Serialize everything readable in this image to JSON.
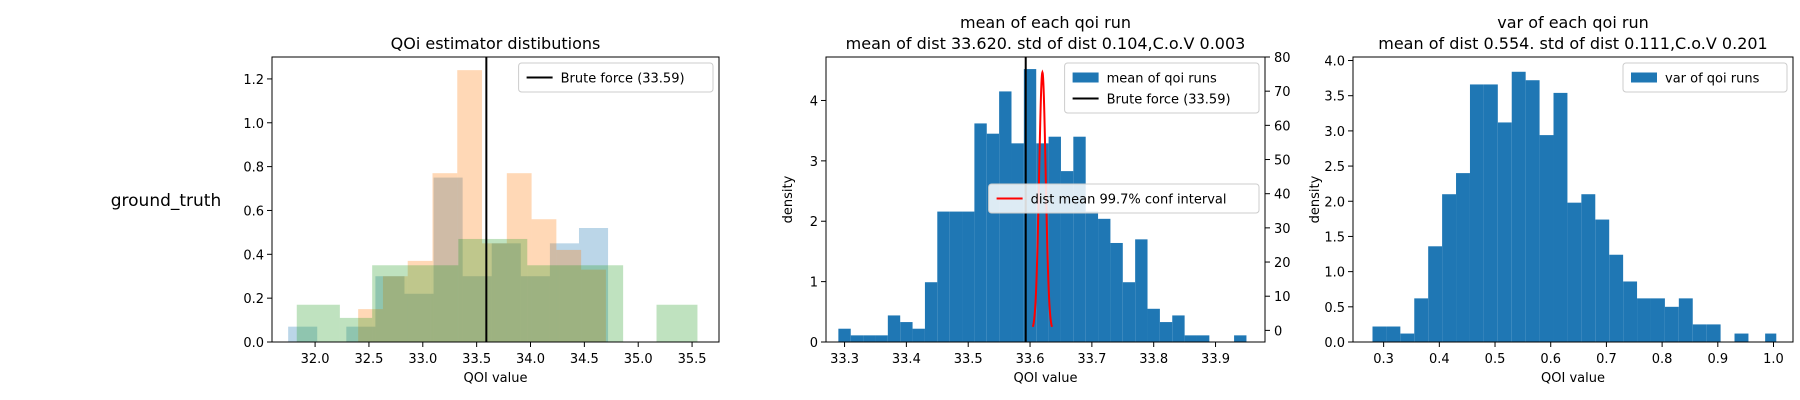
{
  "row_label": "ground_truth",
  "chart_data": [
    {
      "type": "histogram",
      "title": "QOi estimator distibutions",
      "xlabel": "QOI value",
      "ylabel": "",
      "xlim": [
        31.6,
        35.75
      ],
      "ylim": [
        0,
        1.3
      ],
      "xticks": [
        32.0,
        32.5,
        33.0,
        33.5,
        34.0,
        34.5,
        35.0,
        35.5
      ],
      "yticks": [
        0.0,
        0.2,
        0.4,
        0.6,
        0.8,
        1.0,
        1.2
      ],
      "xtick_decimals": 1,
      "ytick_decimals": 1,
      "grid": false,
      "legend": {
        "position": "top-right",
        "entries": [
          {
            "label": "Brute force (33.59)",
            "kind": "line",
            "color": "#000000"
          }
        ]
      },
      "vlines": [
        {
          "x": 33.59,
          "color": "#000000"
        }
      ],
      "series": [
        {
          "color": "#1f77b4",
          "alpha": 0.3,
          "bins": [
            {
              "x0": 31.75,
              "x1": 32.02,
              "h": 0.07
            },
            {
              "x0": 32.02,
              "x1": 32.29,
              "h": 0.0
            },
            {
              "x0": 32.29,
              "x1": 32.56,
              "h": 0.07
            },
            {
              "x0": 32.56,
              "x1": 32.83,
              "h": 0.3
            },
            {
              "x0": 32.83,
              "x1": 33.1,
              "h": 0.22
            },
            {
              "x0": 33.1,
              "x1": 33.37,
              "h": 0.75
            },
            {
              "x0": 33.37,
              "x1": 33.64,
              "h": 0.3
            },
            {
              "x0": 33.64,
              "x1": 33.91,
              "h": 0.45
            },
            {
              "x0": 33.91,
              "x1": 34.18,
              "h": 0.3
            },
            {
              "x0": 34.18,
              "x1": 34.45,
              "h": 0.45
            },
            {
              "x0": 34.45,
              "x1": 34.72,
              "h": 0.52
            }
          ]
        },
        {
          "color": "#ff7f0e",
          "alpha": 0.3,
          "bins": [
            {
              "x0": 32.4,
              "x1": 32.63,
              "h": 0.15
            },
            {
              "x0": 32.63,
              "x1": 32.86,
              "h": 0.3
            },
            {
              "x0": 32.86,
              "x1": 33.09,
              "h": 0.37
            },
            {
              "x0": 33.09,
              "x1": 33.32,
              "h": 0.77
            },
            {
              "x0": 33.32,
              "x1": 33.55,
              "h": 1.24
            },
            {
              "x0": 33.55,
              "x1": 33.78,
              "h": 0.45
            },
            {
              "x0": 33.78,
              "x1": 34.01,
              "h": 0.77
            },
            {
              "x0": 34.01,
              "x1": 34.24,
              "h": 0.56
            },
            {
              "x0": 34.24,
              "x1": 34.47,
              "h": 0.42
            },
            {
              "x0": 34.47,
              "x1": 34.7,
              "h": 0.33
            }
          ]
        },
        {
          "color": "#2ca02c",
          "alpha": 0.3,
          "bins": [
            {
              "x0": 31.83,
              "x1": 32.23,
              "h": 0.17
            },
            {
              "x0": 32.23,
              "x1": 32.53,
              "h": 0.11
            },
            {
              "x0": 32.53,
              "x1": 33.07,
              "h": 0.35
            },
            {
              "x0": 33.07,
              "x1": 33.33,
              "h": 0.35
            },
            {
              "x0": 33.33,
              "x1": 33.67,
              "h": 0.47
            },
            {
              "x0": 33.67,
              "x1": 33.97,
              "h": 0.47
            },
            {
              "x0": 33.97,
              "x1": 34.27,
              "h": 0.35
            },
            {
              "x0": 34.27,
              "x1": 34.86,
              "h": 0.35
            },
            {
              "x0": 34.86,
              "x1": 35.17,
              "h": 0.0
            },
            {
              "x0": 35.17,
              "x1": 35.55,
              "h": 0.17
            }
          ]
        }
      ]
    },
    {
      "type": "histogram",
      "title": "mean of each qoi run",
      "subtitle": "mean of dist 33.620. std of dist 0.104,C.o.V 0.003",
      "xlabel": "QOI value",
      "ylabel": "density",
      "xlim": [
        33.27,
        33.98
      ],
      "ylim": [
        0,
        4.72
      ],
      "xticks": [
        33.3,
        33.4,
        33.5,
        33.6,
        33.7,
        33.8,
        33.9
      ],
      "yticks": [
        0,
        1,
        2,
        3,
        4
      ],
      "xtick_decimals": 1,
      "ytick_decimals": 0,
      "y2lim": [
        -3.4,
        80
      ],
      "y2ticks": [
        0,
        10,
        20,
        30,
        40,
        50,
        60,
        70,
        80
      ],
      "grid": false,
      "legend": {
        "position": "top-right",
        "entries": [
          {
            "label": "mean of qoi runs",
            "kind": "patch",
            "color": "#1f77b4"
          },
          {
            "label": "Brute force (33.59)",
            "kind": "line",
            "color": "#000000"
          }
        ]
      },
      "legend2": {
        "position": "center-right",
        "entries": [
          {
            "label": "dist mean 99.7% conf interval",
            "kind": "line",
            "color": "#ff0000"
          }
        ]
      },
      "vlines": [
        {
          "x": 33.593,
          "color": "#000000"
        }
      ],
      "curve": {
        "color": "#ff0000",
        "mu": 33.62,
        "sigma": 0.0053,
        "peak": 75.5,
        "x_from": 33.6045,
        "x_to": 33.6355
      },
      "series": [
        {
          "color": "#1f77b4",
          "alpha": 1.0,
          "bins": [
            {
              "x0": 33.29,
              "x1": 33.31,
              "h": 0.22
            },
            {
              "x0": 33.31,
              "x1": 33.33,
              "h": 0.11
            },
            {
              "x0": 33.33,
              "x1": 33.35,
              "h": 0.11
            },
            {
              "x0": 33.35,
              "x1": 33.37,
              "h": 0.11
            },
            {
              "x0": 33.37,
              "x1": 33.39,
              "h": 0.44
            },
            {
              "x0": 33.39,
              "x1": 33.41,
              "h": 0.33
            },
            {
              "x0": 33.41,
              "x1": 33.43,
              "h": 0.22
            },
            {
              "x0": 33.43,
              "x1": 33.45,
              "h": 0.99
            },
            {
              "x0": 33.45,
              "x1": 33.47,
              "h": 2.16
            },
            {
              "x0": 33.47,
              "x1": 33.49,
              "h": 2.16
            },
            {
              "x0": 33.49,
              "x1": 33.51,
              "h": 2.16
            },
            {
              "x0": 33.51,
              "x1": 33.53,
              "h": 3.62
            },
            {
              "x0": 33.53,
              "x1": 33.55,
              "h": 3.45
            },
            {
              "x0": 33.55,
              "x1": 33.57,
              "h": 4.15
            },
            {
              "x0": 33.57,
              "x1": 33.59,
              "h": 3.29
            },
            {
              "x0": 33.59,
              "x1": 33.61,
              "h": 4.52
            },
            {
              "x0": 33.61,
              "x1": 33.63,
              "h": 3.29
            },
            {
              "x0": 33.63,
              "x1": 33.65,
              "h": 3.4
            },
            {
              "x0": 33.65,
              "x1": 33.67,
              "h": 2.83
            },
            {
              "x0": 33.67,
              "x1": 33.69,
              "h": 3.4
            },
            {
              "x0": 33.69,
              "x1": 33.71,
              "h": 2.16
            },
            {
              "x0": 33.71,
              "x1": 33.73,
              "h": 2.04
            },
            {
              "x0": 33.73,
              "x1": 33.75,
              "h": 1.64
            },
            {
              "x0": 33.75,
              "x1": 33.77,
              "h": 0.99
            },
            {
              "x0": 33.77,
              "x1": 33.79,
              "h": 1.7
            },
            {
              "x0": 33.79,
              "x1": 33.81,
              "h": 0.55
            },
            {
              "x0": 33.81,
              "x1": 33.83,
              "h": 0.33
            },
            {
              "x0": 33.83,
              "x1": 33.85,
              "h": 0.44
            },
            {
              "x0": 33.85,
              "x1": 33.87,
              "h": 0.11
            },
            {
              "x0": 33.87,
              "x1": 33.89,
              "h": 0.11
            },
            {
              "x0": 33.89,
              "x1": 33.93,
              "h": 0.0
            },
            {
              "x0": 33.93,
              "x1": 33.95,
              "h": 0.11
            }
          ]
        }
      ]
    },
    {
      "type": "histogram",
      "title": "var of each qoi run",
      "subtitle": "mean of dist 0.554. std of dist 0.111,C.o.V 0.201",
      "xlabel": "QOI value",
      "ylabel": "density",
      "xlim": [
        0.245,
        1.035
      ],
      "ylim": [
        0,
        4.05
      ],
      "xticks": [
        0.3,
        0.4,
        0.5,
        0.6,
        0.7,
        0.8,
        0.9,
        1.0
      ],
      "yticks": [
        0.0,
        0.5,
        1.0,
        1.5,
        2.0,
        2.5,
        3.0,
        3.5,
        4.0
      ],
      "xtick_decimals": 1,
      "ytick_decimals": 1,
      "grid": false,
      "legend": {
        "position": "top-right",
        "entries": [
          {
            "label": "var of qoi runs",
            "kind": "patch",
            "color": "#1f77b4"
          }
        ]
      },
      "vlines": [],
      "series": [
        {
          "color": "#1f77b4",
          "alpha": 1.0,
          "bins": [
            {
              "x0": 0.28,
              "x1": 0.305,
              "h": 0.22
            },
            {
              "x0": 0.305,
              "x1": 0.33,
              "h": 0.22
            },
            {
              "x0": 0.33,
              "x1": 0.355,
              "h": 0.12
            },
            {
              "x0": 0.355,
              "x1": 0.38,
              "h": 0.62
            },
            {
              "x0": 0.38,
              "x1": 0.405,
              "h": 1.36
            },
            {
              "x0": 0.405,
              "x1": 0.43,
              "h": 2.1
            },
            {
              "x0": 0.43,
              "x1": 0.455,
              "h": 2.4
            },
            {
              "x0": 0.455,
              "x1": 0.48,
              "h": 3.66
            },
            {
              "x0": 0.48,
              "x1": 0.505,
              "h": 3.66
            },
            {
              "x0": 0.505,
              "x1": 0.53,
              "h": 3.12
            },
            {
              "x0": 0.53,
              "x1": 0.555,
              "h": 3.84
            },
            {
              "x0": 0.555,
              "x1": 0.58,
              "h": 3.72
            },
            {
              "x0": 0.58,
              "x1": 0.605,
              "h": 2.94
            },
            {
              "x0": 0.605,
              "x1": 0.63,
              "h": 3.54
            },
            {
              "x0": 0.63,
              "x1": 0.655,
              "h": 1.98
            },
            {
              "x0": 0.655,
              "x1": 0.68,
              "h": 2.1
            },
            {
              "x0": 0.68,
              "x1": 0.705,
              "h": 1.74
            },
            {
              "x0": 0.705,
              "x1": 0.73,
              "h": 1.24
            },
            {
              "x0": 0.73,
              "x1": 0.755,
              "h": 0.86
            },
            {
              "x0": 0.755,
              "x1": 0.78,
              "h": 0.62
            },
            {
              "x0": 0.78,
              "x1": 0.805,
              "h": 0.62
            },
            {
              "x0": 0.805,
              "x1": 0.83,
              "h": 0.5
            },
            {
              "x0": 0.83,
              "x1": 0.855,
              "h": 0.62
            },
            {
              "x0": 0.855,
              "x1": 0.88,
              "h": 0.25
            },
            {
              "x0": 0.88,
              "x1": 0.905,
              "h": 0.25
            },
            {
              "x0": 0.905,
              "x1": 0.93,
              "h": 0.0
            },
            {
              "x0": 0.93,
              "x1": 0.955,
              "h": 0.12
            },
            {
              "x0": 0.955,
              "x1": 0.985,
              "h": 0.0
            },
            {
              "x0": 0.985,
              "x1": 1.005,
              "h": 0.12
            }
          ]
        }
      ]
    }
  ]
}
